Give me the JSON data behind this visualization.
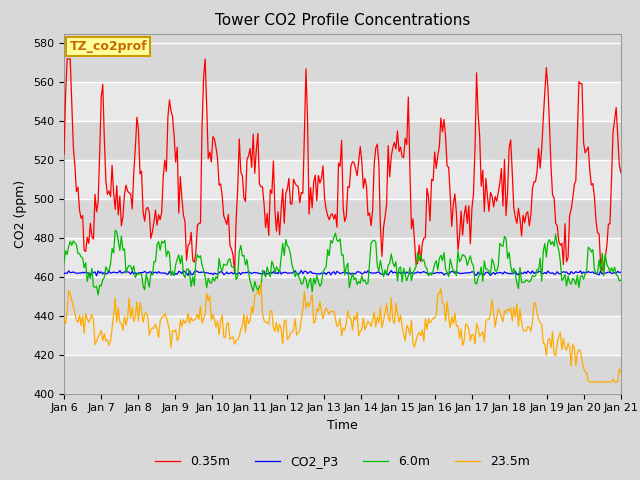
{
  "title": "Tower CO2 Profile Concentrations",
  "xlabel": "Time",
  "ylabel": "CO2 (ppm)",
  "ylim": [
    400,
    585
  ],
  "yticks": [
    400,
    420,
    440,
    460,
    480,
    500,
    520,
    540,
    560,
    580
  ],
  "xtick_labels": [
    "Jan 6",
    "Jan 7",
    "Jan 8",
    "Jan 9",
    "Jan 10",
    "Jan 11",
    "Jan 12",
    "Jan 13",
    "Jan 14",
    "Jan 15",
    "Jan 16",
    "Jan 17",
    "Jan 18",
    "Jan 19",
    "Jan 20",
    "Jan 21"
  ],
  "annotation_text": "TZ_co2prof",
  "annotation_color": "#ffff99",
  "annotation_border": "#cc9900",
  "series": [
    {
      "label": "0.35m",
      "color": "#ff0000"
    },
    {
      "label": "CO2_P3",
      "color": "#0000ff"
    },
    {
      "label": "6.0m",
      "color": "#00bb00"
    },
    {
      "label": "23.5m",
      "color": "#ffaa00"
    }
  ],
  "fig_bg": "#d8d8d8",
  "plot_bg": "#d8d8d8",
  "band_colors": [
    "#d8d8d8",
    "#e8e8e8"
  ],
  "grid_color": "#ffffff",
  "title_fontsize": 11,
  "axis_label_fontsize": 9,
  "tick_fontsize": 8,
  "legend_fontsize": 9,
  "seed": 42,
  "n_points": 360
}
